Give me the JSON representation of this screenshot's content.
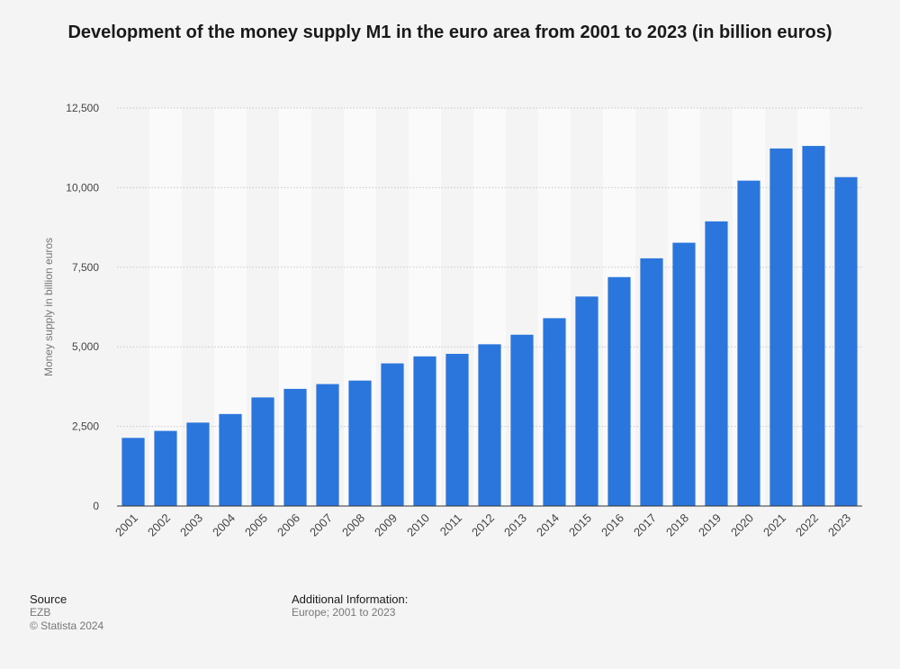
{
  "chart_data": {
    "type": "bar",
    "title": "Development of the money supply M1 in the euro area from 2001 to 2023 (in billion euros)",
    "xlabel": "",
    "ylabel": "Money supply in billion euros",
    "ylim": [
      0,
      12500
    ],
    "yticks": [
      0,
      2500,
      5000,
      7500,
      10000,
      12500
    ],
    "ytick_labels": [
      "0",
      "2,500",
      "5,000",
      "7,500",
      "10,000",
      "12,500"
    ],
    "grid": true,
    "categories": [
      "2001",
      "2002",
      "2003",
      "2004",
      "2005",
      "2006",
      "2007",
      "2008",
      "2009",
      "2010",
      "2011",
      "2012",
      "2013",
      "2014",
      "2015",
      "2016",
      "2017",
      "2018",
      "2019",
      "2020",
      "2021",
      "2022",
      "2023"
    ],
    "values": [
      2140,
      2360,
      2620,
      2890,
      3410,
      3680,
      3830,
      3940,
      4480,
      4700,
      4780,
      5080,
      5380,
      5900,
      6580,
      7190,
      7780,
      8270,
      8940,
      10220,
      11230,
      11310,
      10330
    ],
    "bar_color": "#2a76dd"
  },
  "footer": {
    "source_heading": "Source",
    "source_name": "EZB",
    "copyright": "© Statista 2024",
    "additional_heading": "Additional Information:",
    "additional_text": "Europe; 2001 to 2023"
  }
}
